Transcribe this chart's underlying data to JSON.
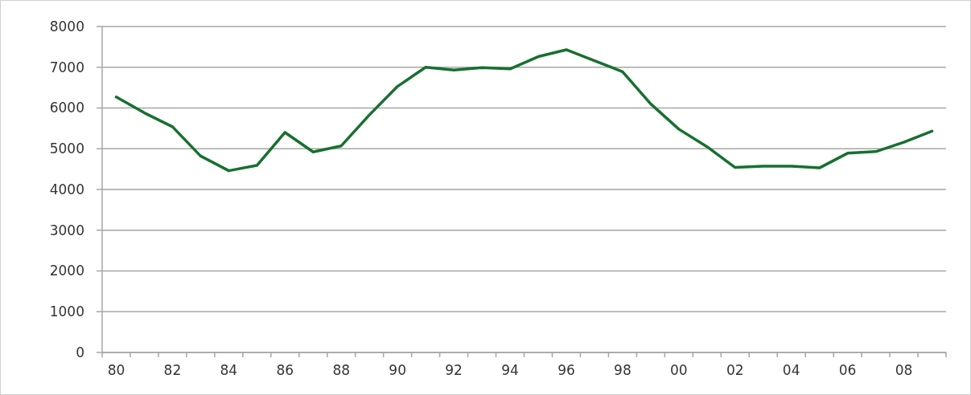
{
  "chart_data": {
    "type": "line",
    "categories": [
      "80",
      null,
      "82",
      null,
      "84",
      null,
      "86",
      null,
      "88",
      null,
      "90",
      null,
      "92",
      null,
      "94",
      null,
      "96",
      null,
      "98",
      null,
      "00",
      null,
      "02",
      null,
      "04",
      null,
      "06",
      null,
      "08",
      null
    ],
    "series": [
      {
        "color": "#17702f",
        "values": [
          6270,
          5880,
          5540,
          4820,
          4460,
          4590,
          5400,
          4920,
          5070,
          5830,
          6530,
          7000,
          6930,
          6990,
          6960,
          7260,
          7430,
          7160,
          6890,
          6100,
          5480,
          5050,
          4540,
          4570,
          4570,
          4530,
          4890,
          4930,
          5160,
          5430
        ]
      }
    ],
    "ylim": [
      0,
      8000
    ],
    "yticks": [
      0,
      1000,
      2000,
      3000,
      4000,
      5000,
      6000,
      7000,
      8000
    ],
    "grid": "y",
    "marker": "none",
    "line_style": "solid"
  }
}
